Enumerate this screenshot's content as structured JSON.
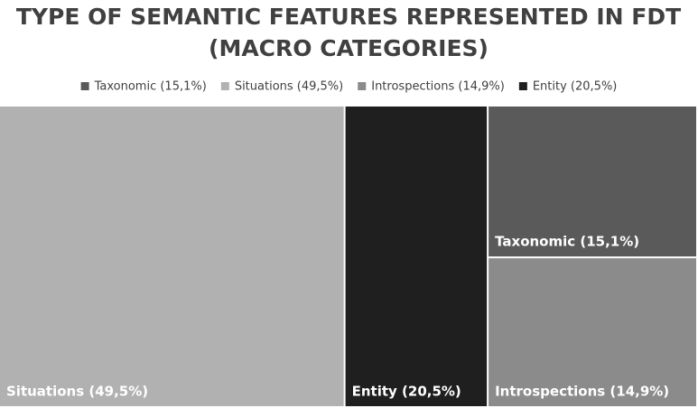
{
  "chart_data": {
    "type": "treemap",
    "title": [
      "TYPE OF SEMANTIC FEATURES REPRESENTED IN FDT",
      "(MACRO CATEGORIES)"
    ],
    "categories": [
      "Taxonomic (15,1%)",
      "Situations (49,5%)",
      "Introspections (14,9%)",
      "Entity (20,5%)"
    ],
    "values": [
      15.1,
      49.5,
      14.9,
      20.5
    ],
    "colors": [
      "#5a5a5a",
      "#b1b1b1",
      "#8b8b8b",
      "#1f1f1f"
    ],
    "legend": "top"
  }
}
